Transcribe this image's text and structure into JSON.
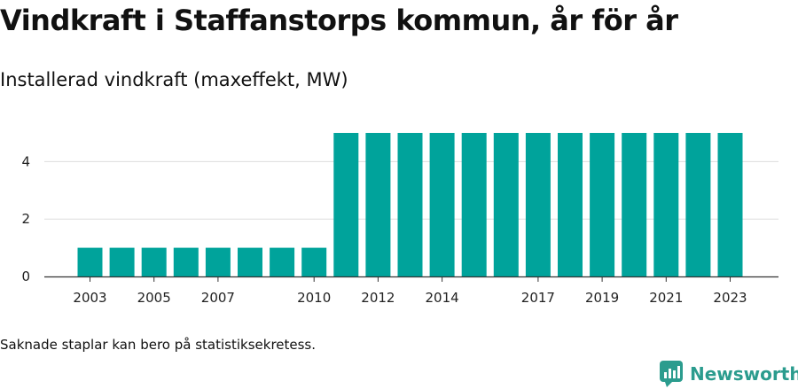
{
  "title": "Vindkraft i Staffanstorps kommun, år för år",
  "subtitle": "Installerad vindkraft (maxeffekt, MW)",
  "footnote": "Saknade staplar kan bero på statistiksekretess.",
  "brand": {
    "name": "Newsworthy",
    "logo_icon": "newsworthy-logo-icon"
  },
  "colors": {
    "bar": "#00a39b",
    "grid": "#dddddd",
    "axis": "#333333",
    "brand": "#2b9c8e"
  },
  "chart_data": {
    "type": "bar",
    "title": "Vindkraft i Staffanstorps kommun, år för år",
    "ylabel": "Installerad vindkraft (maxeffekt, MW)",
    "xlabel": "",
    "categories": [
      "2003",
      "2004",
      "2005",
      "2006",
      "2007",
      "2008",
      "2009",
      "2010",
      "2011",
      "2012",
      "2013",
      "2014",
      "2015",
      "2016",
      "2017",
      "2018",
      "2019",
      "2020",
      "2021",
      "2022",
      "2023"
    ],
    "values": [
      1,
      1,
      1,
      1,
      1,
      1,
      1,
      1,
      5,
      5,
      5,
      5,
      5,
      5,
      5,
      5,
      5,
      5,
      5,
      5,
      5
    ],
    "x_tick_labels": [
      "2003",
      "2005",
      "2007",
      "2010",
      "2012",
      "2014",
      "2017",
      "2019",
      "2021",
      "2023"
    ],
    "y_ticks": [
      0,
      2,
      4
    ],
    "ylim": [
      0,
      5
    ],
    "grid": true,
    "legend": "none"
  }
}
